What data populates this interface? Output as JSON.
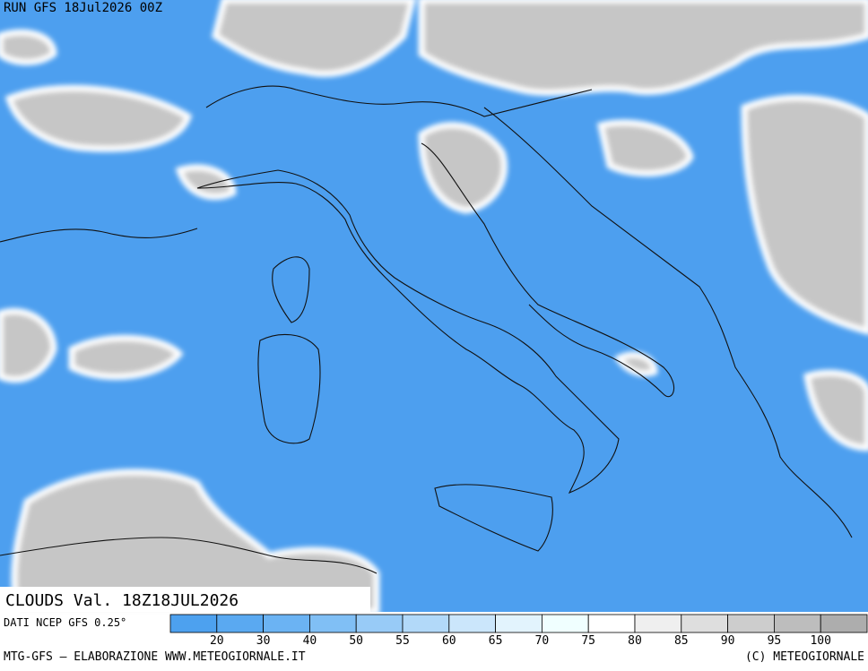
{
  "header": {
    "run": "RUN GFS 18Jul2026 00Z"
  },
  "panel": {
    "title": "CLOUDS Val. 18Z18JUL2026",
    "source": "DATI NCEP GFS 0.25°"
  },
  "legend": {
    "levels": [
      "20",
      "30",
      "40",
      "50",
      "55",
      "60",
      "65",
      "70",
      "75",
      "80",
      "85",
      "90",
      "95",
      "100"
    ],
    "colors": [
      "#4da1ef",
      "#5aa9f1",
      "#6bb3f3",
      "#80bff5",
      "#98cbf7",
      "#b2d9f9",
      "#cbe6fb",
      "#e2f3fd",
      "#f0ffff",
      "#ffffff",
      "#efefef",
      "#dedede",
      "#cdcdcd",
      "#bdbdbd",
      "#adadad"
    ]
  },
  "footer": {
    "left": "MTG-GFS — ELABORAZIONE WWW.METEOGIORNALE.IT",
    "right": "(C) METEOGIORNALE"
  }
}
